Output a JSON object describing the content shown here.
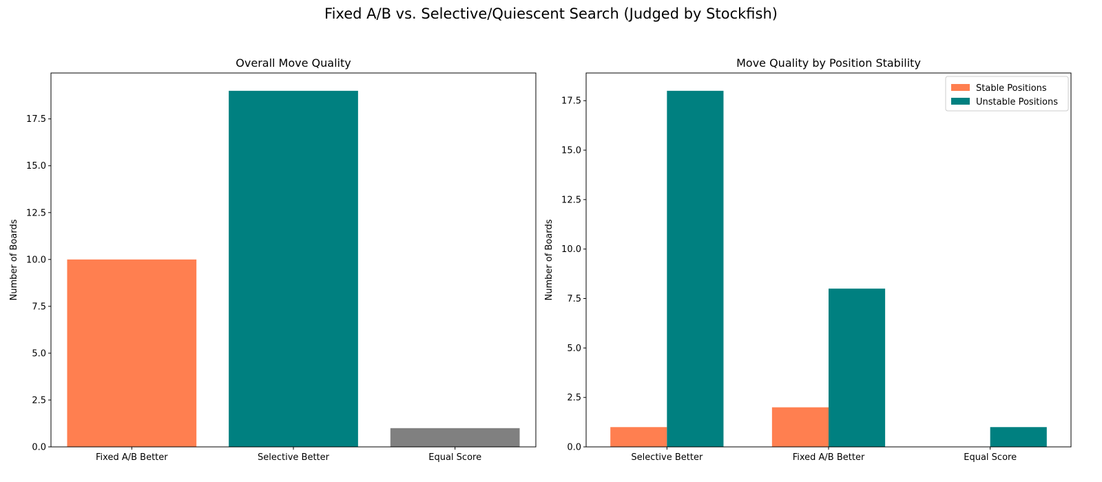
{
  "figure": {
    "title": "Fixed A/B vs. Selective/Quiescent Search (Judged by Stockfish)"
  },
  "chart_data": [
    {
      "type": "bar",
      "title": "Overall Move Quality",
      "xlabel": "",
      "ylabel": "Number of Boards",
      "categories": [
        "Fixed A/B Better",
        "Selective Better",
        "Equal Score"
      ],
      "values": [
        10,
        19,
        1
      ],
      "colors": [
        "#ff7f50",
        "#008080",
        "#808080"
      ],
      "ylim": [
        0,
        19.95
      ],
      "yticks": [
        0,
        2.5,
        5,
        7.5,
        10,
        12.5,
        15,
        17.5
      ],
      "ytick_labels": [
        "0.0",
        "2.5",
        "5.0",
        "7.5",
        "10.0",
        "12.5",
        "15.0",
        "17.5"
      ],
      "grid": false
    },
    {
      "type": "bar",
      "title": "Move Quality by Position Stability",
      "xlabel": "",
      "ylabel": "Number of Boards",
      "categories": [
        "Selective Better",
        "Fixed A/B Better",
        "Equal Score"
      ],
      "series": [
        {
          "name": "Stable Positions",
          "values": [
            1,
            2,
            0
          ],
          "color": "#ff7f50"
        },
        {
          "name": "Unstable Positions",
          "values": [
            18,
            8,
            1
          ],
          "color": "#008080"
        }
      ],
      "ylim": [
        0,
        18.9
      ],
      "yticks": [
        0,
        2.5,
        5,
        7.5,
        10,
        12.5,
        15,
        17.5
      ],
      "ytick_labels": [
        "0.0",
        "2.5",
        "5.0",
        "7.5",
        "10.0",
        "12.5",
        "15.0",
        "17.5"
      ],
      "legend": "top-right",
      "grid": false
    }
  ]
}
